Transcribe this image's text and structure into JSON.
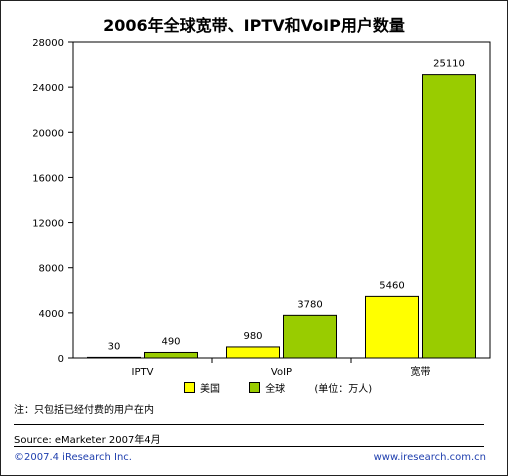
{
  "chart_data": {
    "type": "bar",
    "title": "2006年全球宽带、IPTV和VoIP用户数量",
    "categories": [
      "IPTV",
      "VoIP",
      "宽带"
    ],
    "series": [
      {
        "name": "美国",
        "values": [
          30,
          980,
          5460
        ],
        "color": "#ffff00"
      },
      {
        "name": "全球",
        "values": [
          490,
          3780,
          25110
        ],
        "color": "#99cc00"
      }
    ],
    "yticks": [
      "0",
      "4000",
      "8000",
      "12000",
      "16000",
      "20000",
      "24000",
      "28000"
    ],
    "ylim": [
      0,
      28000
    ],
    "unit_label": "(单位：万人)",
    "legend_position": "bottom"
  },
  "note": "注：只包括已经付费的用户在内",
  "source": "Source: eMarketer 2007年4月",
  "copyright": "©2007.4 iResearch Inc.",
  "website": "www.iresearch.com.cn"
}
